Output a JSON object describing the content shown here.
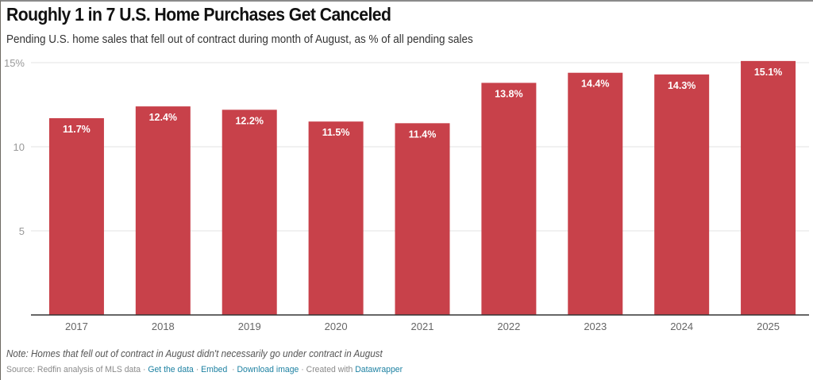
{
  "title": "Roughly 1 in 7 U.S. Home Purchases Get Canceled",
  "subtitle": "Pending U.S. home sales that fell out of contract during month of August, as % of all pending sales",
  "note": "Note: Homes that fell out of contract in August didn't necessarily go under contract in August",
  "footer": {
    "source": "Source: Redfin analysis of MLS data",
    "separator": "·",
    "get_data": "Get the data",
    "embed": "Embed",
    "download": "Download image",
    "created_with": "Created with",
    "datawrapper": "Datawrapper"
  },
  "colors": {
    "bar": "#c8414a",
    "link": "#1d81a2",
    "grid": "#e3e3e3",
    "axis": "#333333"
  },
  "chart_data": {
    "type": "bar",
    "title": "Roughly 1 in 7 U.S. Home Purchases Get Canceled",
    "subtitle": "Pending U.S. home sales that fell out of contract during month of August, as % of all pending sales",
    "xlabel": "",
    "ylabel": "",
    "categories": [
      "2017",
      "2018",
      "2019",
      "2020",
      "2021",
      "2022",
      "2023",
      "2024",
      "2025"
    ],
    "values": [
      11.7,
      12.4,
      12.2,
      11.5,
      11.4,
      13.8,
      14.4,
      14.3,
      15.1
    ],
    "value_labels": [
      "11.7%",
      "12.4%",
      "12.2%",
      "11.5%",
      "11.4%",
      "13.8%",
      "14.4%",
      "14.3%",
      "15.1%"
    ],
    "ylim": [
      0,
      15
    ],
    "yticks": [
      5,
      10,
      15
    ],
    "ytick_labels": [
      "5",
      "10",
      "15%"
    ],
    "grid": true,
    "legend": "none"
  }
}
